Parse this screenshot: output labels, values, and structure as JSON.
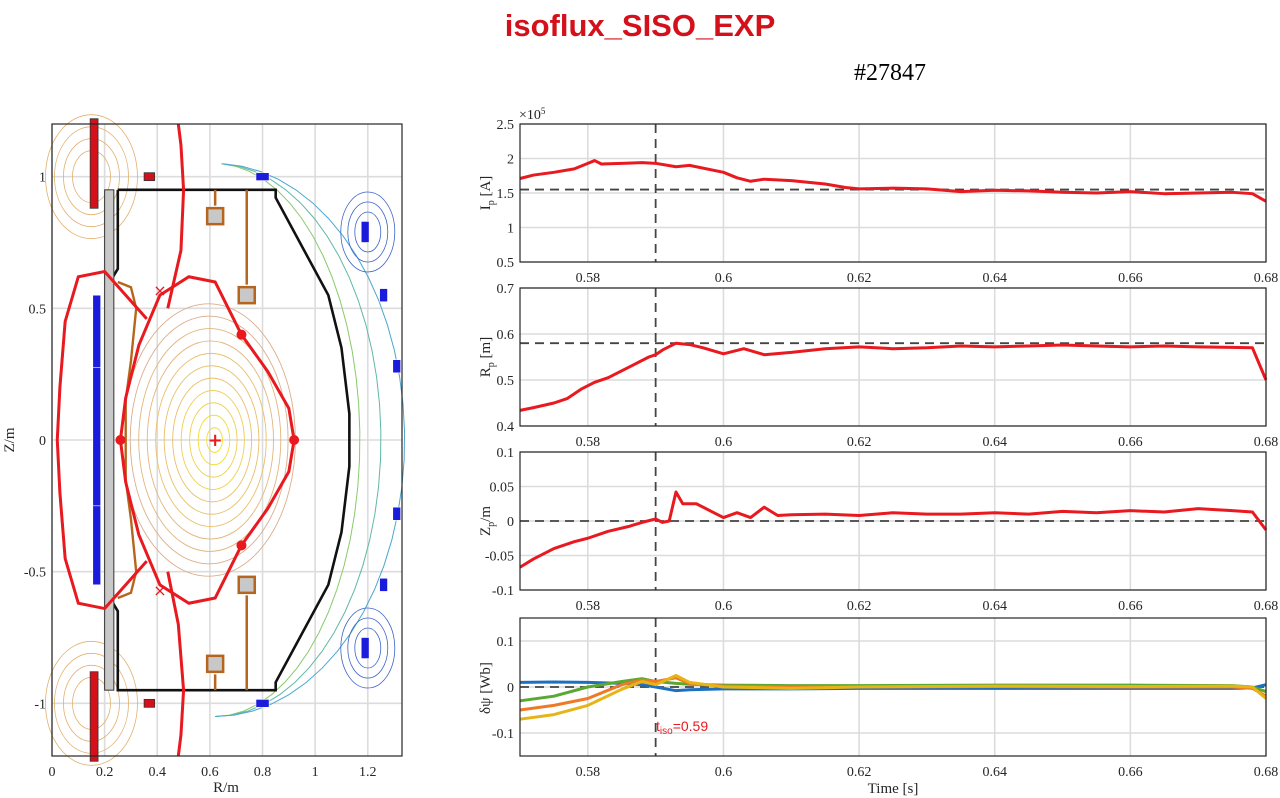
{
  "page": {
    "title": "isoflux_SISO_EXP",
    "shot_label": "#27847"
  },
  "colors": {
    "title": "#d4111b",
    "trace": "#e8191f",
    "reference": "#444444",
    "vessel": "#111111",
    "coil_pf": "#d4111b",
    "coil_blue": "#1b1bdc",
    "limiter": "#b5651d",
    "grid": "#dcdcdc"
  },
  "chart_data": [
    {
      "id": "equilibrium",
      "type": "line",
      "xlabel": "R/m",
      "ylabel": "Z/m",
      "xlim": [
        0,
        1.33
      ],
      "ylim": [
        -1.2,
        1.2
      ],
      "xticks": [
        "0",
        "0.2",
        "0.4",
        "0.6",
        "0.8",
        "1",
        "1.2"
      ],
      "xtick_values": [
        0,
        0.2,
        0.4,
        0.6,
        0.8,
        1.0,
        1.2
      ],
      "yticks": [
        "-1",
        "-0.5",
        "0",
        "0.5",
        "1"
      ],
      "ytick_values": [
        -1,
        -0.5,
        0,
        0.5,
        1
      ],
      "grid": true,
      "magnetic_axis": [
        0.62,
        0.0
      ],
      "control_points": [
        [
          0.26,
          0.0
        ],
        [
          0.92,
          0.0
        ],
        [
          0.72,
          0.4
        ],
        [
          0.72,
          -0.4
        ]
      ],
      "x_points": [
        [
          0.41,
          0.57
        ],
        [
          0.41,
          -0.57
        ]
      ],
      "lcfs": [
        [
          0.26,
          0
        ],
        [
          0.28,
          0.16
        ],
        [
          0.33,
          0.36
        ],
        [
          0.41,
          0.55
        ],
        [
          0.52,
          0.62
        ],
        [
          0.62,
          0.6
        ],
        [
          0.72,
          0.4
        ],
        [
          0.82,
          0.26
        ],
        [
          0.9,
          0.12
        ],
        [
          0.92,
          0
        ],
        [
          0.9,
          -0.12
        ],
        [
          0.82,
          -0.26
        ],
        [
          0.72,
          -0.4
        ],
        [
          0.62,
          -0.6
        ],
        [
          0.52,
          -0.62
        ],
        [
          0.41,
          -0.55
        ],
        [
          0.33,
          -0.36
        ],
        [
          0.28,
          -0.16
        ],
        [
          0.26,
          0
        ]
      ],
      "separatrix_outer": [
        [
          0.36,
          0.46
        ],
        [
          0.2,
          0.64
        ],
        [
          0.1,
          0.62
        ],
        [
          0.05,
          0.45
        ],
        [
          0.03,
          0.2
        ],
        [
          0.02,
          0
        ],
        [
          0.03,
          -0.2
        ],
        [
          0.05,
          -0.45
        ],
        [
          0.1,
          -0.62
        ],
        [
          0.2,
          -0.64
        ],
        [
          0.36,
          -0.46
        ]
      ],
      "separatrix_right": [
        [
          0.44,
          0.5
        ],
        [
          0.49,
          0.72
        ],
        [
          0.5,
          0.95
        ],
        [
          0.49,
          1.12
        ],
        [
          0.48,
          1.2
        ]
      ],
      "separatrix_right_low": [
        [
          0.44,
          -0.5
        ],
        [
          0.48,
          -0.7
        ],
        [
          0.5,
          -0.95
        ],
        [
          0.49,
          -1.12
        ],
        [
          0.48,
          -1.2
        ]
      ],
      "vessel": [
        [
          0.25,
          0.95
        ],
        [
          0.85,
          0.95
        ],
        [
          0.85,
          0.92
        ],
        [
          1.05,
          0.55
        ],
        [
          1.1,
          0.35
        ],
        [
          1.13,
          0.1
        ],
        [
          1.13,
          -0.1
        ],
        [
          1.1,
          -0.35
        ],
        [
          1.05,
          -0.55
        ],
        [
          0.85,
          -0.92
        ],
        [
          0.85,
          -0.95
        ],
        [
          0.25,
          -0.95
        ],
        [
          0.25,
          -0.65
        ],
        [
          0.22,
          -0.6
        ],
        [
          0.22,
          0.6
        ],
        [
          0.25,
          0.65
        ],
        [
          0.25,
          0.95
        ]
      ],
      "limiter": [
        [
          0.25,
          0.6
        ],
        [
          0.3,
          0.58
        ],
        [
          0.32,
          0.5
        ],
        [
          0.3,
          0.3
        ],
        [
          0.28,
          0.15
        ],
        [
          0.28,
          -0.15
        ],
        [
          0.3,
          -0.3
        ],
        [
          0.32,
          -0.5
        ],
        [
          0.3,
          -0.58
        ],
        [
          0.25,
          -0.6
        ]
      ],
      "coils_red": [
        [
          0.16,
          1.05,
          0.03,
          0.34
        ],
        [
          0.16,
          -1.05,
          0.03,
          0.34
        ],
        [
          0.37,
          1.0,
          0.04,
          0.03
        ],
        [
          0.37,
          -1.0,
          0.04,
          0.03
        ]
      ],
      "coils_blue": [
        [
          0.17,
          0.4,
          0.03,
          0.3
        ],
        [
          0.17,
          0.0,
          0.03,
          0.55
        ],
        [
          0.17,
          -0.4,
          0.03,
          0.3
        ],
        [
          0.8,
          1.0,
          0.05,
          0.03
        ],
        [
          0.8,
          -1.0,
          0.05,
          0.03
        ],
        [
          1.19,
          0.79,
          0.03,
          0.08
        ],
        [
          1.26,
          0.55,
          0.03,
          0.05
        ],
        [
          1.31,
          0.28,
          0.03,
          0.05
        ],
        [
          1.31,
          -0.28,
          0.03,
          0.05
        ],
        [
          1.26,
          -0.55,
          0.03,
          0.05
        ],
        [
          1.19,
          -0.79,
          0.03,
          0.08
        ]
      ]
    },
    {
      "id": "ip",
      "type": "line",
      "ylabel": "I_p  [A]",
      "ylabel_main": "I",
      "ylabel_sub": "p",
      "ylabel_rest": "  [A]",
      "exponent_label": "×10",
      "exponent_power": "5",
      "xlim": [
        0.57,
        0.68
      ],
      "ylim": [
        0.5,
        2.5
      ],
      "xticks": [
        "0.58",
        "0.6",
        "0.62",
        "0.64",
        "0.66",
        "0.68"
      ],
      "yticks": [
        "0.5",
        "1",
        "1.5",
        "2",
        "2.5"
      ],
      "ytick_values": [
        0.5,
        1,
        1.5,
        2,
        2.5
      ],
      "reference": 1.55,
      "grid": true,
      "x": [
        0.57,
        0.572,
        0.575,
        0.578,
        0.58,
        0.581,
        0.582,
        0.585,
        0.588,
        0.59,
        0.593,
        0.595,
        0.6,
        0.602,
        0.604,
        0.606,
        0.61,
        0.615,
        0.618,
        0.62,
        0.625,
        0.63,
        0.635,
        0.64,
        0.645,
        0.65,
        0.655,
        0.66,
        0.665,
        0.67,
        0.675,
        0.678,
        0.68
      ],
      "values": [
        1.71,
        1.76,
        1.8,
        1.85,
        1.93,
        1.97,
        1.92,
        1.93,
        1.94,
        1.93,
        1.88,
        1.9,
        1.8,
        1.72,
        1.67,
        1.7,
        1.68,
        1.63,
        1.58,
        1.56,
        1.57,
        1.56,
        1.52,
        1.54,
        1.53,
        1.51,
        1.5,
        1.52,
        1.49,
        1.5,
        1.51,
        1.49,
        1.38
      ]
    },
    {
      "id": "rp",
      "type": "line",
      "ylabel": "R_p  [m]",
      "ylabel_main": "R",
      "ylabel_sub": "p",
      "ylabel_rest": "  [m]",
      "xlim": [
        0.57,
        0.68
      ],
      "ylim": [
        0.4,
        0.7
      ],
      "xticks": [
        "0.58",
        "0.6",
        "0.62",
        "0.64",
        "0.66",
        "0.68"
      ],
      "yticks": [
        "0.4",
        "0.5",
        "0.6",
        "0.7"
      ],
      "ytick_values": [
        0.4,
        0.5,
        0.6,
        0.7
      ],
      "reference": 0.58,
      "grid": true,
      "x": [
        0.57,
        0.572,
        0.575,
        0.577,
        0.579,
        0.581,
        0.583,
        0.585,
        0.587,
        0.589,
        0.59,
        0.591,
        0.593,
        0.595,
        0.597,
        0.6,
        0.603,
        0.606,
        0.61,
        0.615,
        0.62,
        0.625,
        0.63,
        0.635,
        0.64,
        0.645,
        0.65,
        0.655,
        0.66,
        0.665,
        0.67,
        0.675,
        0.678,
        0.68
      ],
      "values": [
        0.434,
        0.44,
        0.45,
        0.46,
        0.48,
        0.495,
        0.505,
        0.52,
        0.535,
        0.55,
        0.555,
        0.565,
        0.58,
        0.577,
        0.57,
        0.557,
        0.568,
        0.555,
        0.56,
        0.568,
        0.572,
        0.568,
        0.57,
        0.574,
        0.572,
        0.574,
        0.576,
        0.574,
        0.572,
        0.574,
        0.572,
        0.571,
        0.57,
        0.5
      ]
    },
    {
      "id": "zp",
      "type": "line",
      "ylabel": "Z_p/m",
      "ylabel_main": "Z",
      "ylabel_sub": "p",
      "ylabel_rest": "/m",
      "xlim": [
        0.57,
        0.68
      ],
      "ylim": [
        -0.1,
        0.1
      ],
      "xticks": [
        "0.58",
        "0.6",
        "0.62",
        "0.64",
        "0.66",
        "0.68"
      ],
      "yticks": [
        "-0.1",
        "-0.05",
        "0",
        "0.05",
        "0.1"
      ],
      "ytick_values": [
        -0.1,
        -0.05,
        0,
        0.05,
        0.1
      ],
      "reference": 0.0,
      "grid": true,
      "x": [
        0.57,
        0.572,
        0.575,
        0.578,
        0.58,
        0.583,
        0.586,
        0.588,
        0.59,
        0.591,
        0.592,
        0.593,
        0.594,
        0.596,
        0.598,
        0.6,
        0.602,
        0.604,
        0.606,
        0.608,
        0.61,
        0.615,
        0.62,
        0.625,
        0.63,
        0.635,
        0.64,
        0.645,
        0.65,
        0.655,
        0.66,
        0.665,
        0.67,
        0.675,
        0.678,
        0.68
      ],
      "values": [
        -0.067,
        -0.055,
        -0.04,
        -0.03,
        -0.025,
        -0.015,
        -0.008,
        -0.002,
        0.003,
        -0.002,
        0.0,
        0.042,
        0.025,
        0.025,
        0.015,
        0.005,
        0.012,
        0.005,
        0.02,
        0.008,
        0.009,
        0.01,
        0.008,
        0.012,
        0.01,
        0.01,
        0.012,
        0.01,
        0.014,
        0.012,
        0.015,
        0.013,
        0.018,
        0.015,
        0.013,
        -0.013
      ]
    },
    {
      "id": "dpsi",
      "type": "line",
      "ylabel": "δψ  [Wb]",
      "ylabel_main": "δψ",
      "ylabel_sub": "",
      "ylabel_rest": "  [Wb]",
      "xlabel": "Time [s]",
      "xlim": [
        0.57,
        0.68
      ],
      "ylim": [
        -0.15,
        0.15
      ],
      "xticks": [
        "0.58",
        "0.6",
        "0.62",
        "0.64",
        "0.66",
        "0.68"
      ],
      "yticks": [
        "-0.1",
        "0",
        "0.1"
      ],
      "ytick_values": [
        -0.1,
        0,
        0.1
      ],
      "reference": 0.0,
      "grid": true,
      "annotation": {
        "text_main": "t",
        "text_sub": "iso",
        "text_rest": "=0.59",
        "x": 0.59
      },
      "x": [
        0.57,
        0.575,
        0.58,
        0.585,
        0.588,
        0.59,
        0.593,
        0.595,
        0.6,
        0.61,
        0.62,
        0.64,
        0.66,
        0.675,
        0.678,
        0.68
      ],
      "series": [
        {
          "color": "#1f6fbf",
          "values": [
            0.01,
            0.011,
            0.01,
            0.008,
            0.005,
            0.0,
            -0.008,
            -0.006,
            -0.004,
            -0.004,
            -0.003,
            -0.003,
            -0.003,
            -0.003,
            -0.002,
            0.005
          ]
        },
        {
          "color": "#5aa832",
          "values": [
            -0.03,
            -0.02,
            0.0,
            0.012,
            0.018,
            0.012,
            0.008,
            0.006,
            0.004,
            0.003,
            0.003,
            0.004,
            0.004,
            0.003,
            0.0,
            -0.01
          ]
        },
        {
          "color": "#ee7a26",
          "values": [
            -0.05,
            -0.04,
            -0.025,
            0.005,
            0.015,
            0.012,
            0.02,
            0.008,
            0.002,
            0.0,
            0.0,
            0.001,
            0.0,
            0.0,
            -0.003,
            -0.02
          ]
        },
        {
          "color": "#e7b416",
          "values": [
            -0.07,
            -0.06,
            -0.04,
            -0.005,
            0.012,
            0.005,
            0.025,
            0.01,
            0.0,
            -0.003,
            0.0,
            0.002,
            0.001,
            0.002,
            0.0,
            -0.025
          ]
        }
      ]
    }
  ]
}
